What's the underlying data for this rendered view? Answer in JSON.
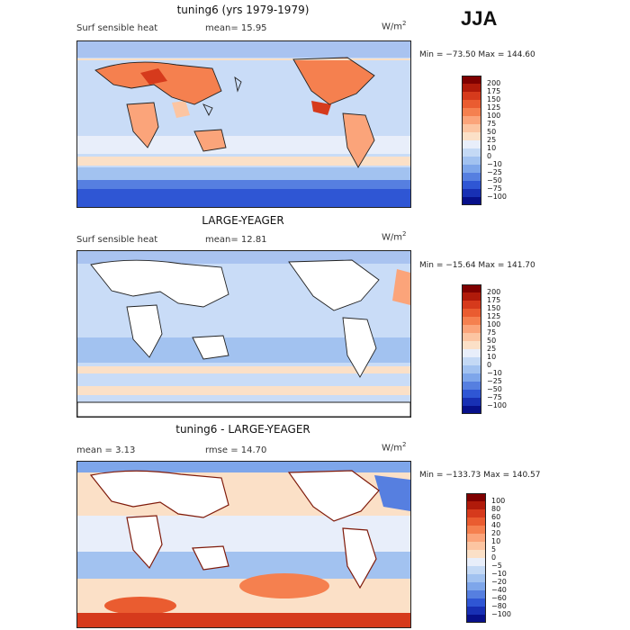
{
  "season": "JJA",
  "panels": [
    {
      "title": "tuning6 (yrs 1979-1979)",
      "variable": "Surf sensible heat",
      "stat_text": "mean=  15.95",
      "units": "W/m",
      "units_sup": "2",
      "minmax": "Min = −73.50 Max = 144.60",
      "map_kind": "model",
      "colorbar": {
        "ticks": [
          "200",
          "175",
          "150",
          "125",
          "100",
          "75",
          "50",
          "25",
          "10",
          "0",
          "−10",
          "−25",
          "−50",
          "−75",
          "−100"
        ],
        "colors": [
          "#7f0000",
          "#b01a0a",
          "#d63a1c",
          "#ea5c30",
          "#f5804f",
          "#fba47a",
          "#fcc5a2",
          "#fbe0c7",
          "#e8eefa",
          "#c4d9f5",
          "#a2c2f0",
          "#7ea6ea",
          "#567fe0",
          "#2f56d4",
          "#1830b4",
          "#07108a"
        ]
      }
    },
    {
      "title": "LARGE-YEAGER",
      "variable": "Surf sensible heat",
      "stat_text": "mean=  12.81",
      "units": "W/m",
      "units_sup": "2",
      "minmax": "Min = −15.64 Max = 141.70",
      "map_kind": "obs",
      "colorbar": {
        "ticks": [
          "200",
          "175",
          "150",
          "125",
          "100",
          "75",
          "50",
          "25",
          "10",
          "0",
          "−10",
          "−25",
          "−50",
          "−75",
          "−100"
        ],
        "colors": [
          "#7f0000",
          "#b01a0a",
          "#d63a1c",
          "#ea5c30",
          "#f5804f",
          "#fba47a",
          "#fcc5a2",
          "#fbe0c7",
          "#e8eefa",
          "#c4d9f5",
          "#a2c2f0",
          "#7ea6ea",
          "#567fe0",
          "#2f56d4",
          "#1830b4",
          "#07108a"
        ]
      }
    },
    {
      "title": "tuning6 - LARGE-YEAGER",
      "variable": "mean =    3.13",
      "stat_text": "rmse =  14.70",
      "units": "W/m",
      "units_sup": "2",
      "minmax": "Min = −133.73 Max = 140.57",
      "map_kind": "diff",
      "colorbar": {
        "ticks": [
          "100",
          "80",
          "60",
          "40",
          "20",
          "10",
          "5",
          "0",
          "−5",
          "−10",
          "−20",
          "−40",
          "−60",
          "−80",
          "−100"
        ],
        "colors": [
          "#7f0000",
          "#b01a0a",
          "#d63a1c",
          "#ea5c30",
          "#f5804f",
          "#fba47a",
          "#fcc5a2",
          "#fbe0c7",
          "#e8eefa",
          "#c4d9f5",
          "#a2c2f0",
          "#7ea6ea",
          "#567fe0",
          "#2f56d4",
          "#1830b4",
          "#07108a"
        ]
      }
    }
  ],
  "colors": {
    "ocean_model": "#c9dcf7",
    "land_obs": "#ffffff",
    "warm": "#f4a07a",
    "cool": "#6f95e4"
  }
}
